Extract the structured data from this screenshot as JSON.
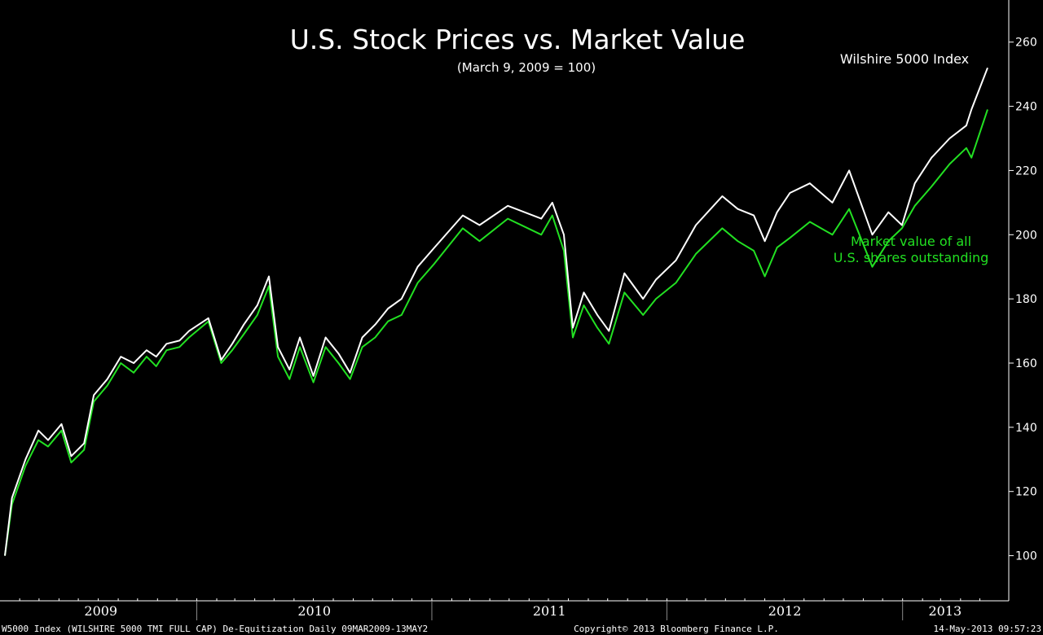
{
  "chart_data": {
    "type": "line",
    "title": "U.S. Stock Prices vs. Market Value",
    "subtitle": "(March 9, 2009 = 100)",
    "ylim": [
      90,
      265
    ],
    "y_ticks": [
      100,
      120,
      140,
      160,
      180,
      200,
      220,
      240,
      260
    ],
    "x_range": [
      "2009-03-09",
      "2013-05-13"
    ],
    "x_year_labels": [
      {
        "label": "2009",
        "start": "2009-03-09",
        "end": "2010-01-01"
      },
      {
        "label": "2010",
        "start": "2010-01-01",
        "end": "2011-01-01"
      },
      {
        "label": "2011",
        "start": "2011-01-01",
        "end": "2012-01-01"
      },
      {
        "label": "2012",
        "start": "2012-01-01",
        "end": "2013-01-01"
      },
      {
        "label": "2013",
        "start": "2013-01-01",
        "end": "2013-05-13"
      }
    ],
    "grid": false,
    "x": [
      "2009-03-09",
      "2009-03-20",
      "2009-04-10",
      "2009-04-30",
      "2009-05-15",
      "2009-06-05",
      "2009-06-20",
      "2009-07-10",
      "2009-07-25",
      "2009-08-15",
      "2009-09-05",
      "2009-09-25",
      "2009-10-15",
      "2009-10-30",
      "2009-11-15",
      "2009-12-05",
      "2009-12-20",
      "2010-01-19",
      "2010-02-08",
      "2010-02-25",
      "2010-03-15",
      "2010-04-05",
      "2010-04-23",
      "2010-05-07",
      "2010-05-25",
      "2010-06-10",
      "2010-07-01",
      "2010-07-20",
      "2010-08-09",
      "2010-08-27",
      "2010-09-15",
      "2010-10-05",
      "2010-10-25",
      "2010-11-15",
      "2010-12-10",
      "2011-01-05",
      "2011-02-18",
      "2011-03-16",
      "2011-04-29",
      "2011-06-20",
      "2011-07-07",
      "2011-07-25",
      "2011-08-08",
      "2011-08-25",
      "2011-09-15",
      "2011-10-03",
      "2011-10-27",
      "2011-11-25",
      "2011-12-15",
      "2012-01-15",
      "2012-02-15",
      "2012-03-27",
      "2012-04-20",
      "2012-05-15",
      "2012-06-01",
      "2012-06-20",
      "2012-07-10",
      "2012-08-10",
      "2012-09-14",
      "2012-10-10",
      "2012-11-15",
      "2012-12-10",
      "2012-12-31",
      "2013-01-20",
      "2013-02-15",
      "2013-03-15",
      "2013-04-10",
      "2013-04-18",
      "2013-05-13"
    ],
    "series": [
      {
        "name": "Wilshire 5000 Index",
        "color": "#ffffff",
        "values": [
          100,
          118,
          130,
          139,
          136,
          141,
          131,
          135,
          150,
          155,
          162,
          160,
          164,
          162,
          166,
          167,
          170,
          174,
          161,
          166,
          172,
          178,
          187,
          165,
          158,
          168,
          156,
          168,
          163,
          157,
          168,
          172,
          177,
          180,
          190,
          196,
          206,
          203,
          209,
          205,
          210,
          200,
          171,
          182,
          175,
          170,
          188,
          180,
          186,
          192,
          203,
          212,
          208,
          206,
          198,
          207,
          213,
          216,
          210,
          220,
          200,
          207,
          203,
          216,
          224,
          230,
          234,
          239,
          252
        ]
      },
      {
        "name": "Market value of all U.S. shares outstanding",
        "color": "#22e022",
        "values": [
          100,
          116,
          128,
          136,
          134,
          139,
          129,
          133,
          148,
          153,
          160,
          157,
          162,
          159,
          164,
          165,
          168,
          173,
          160,
          164,
          169,
          175,
          184,
          162,
          155,
          165,
          154,
          165,
          160,
          155,
          165,
          168,
          173,
          175,
          185,
          191,
          202,
          198,
          205,
          200,
          206,
          195,
          168,
          178,
          171,
          166,
          182,
          175,
          180,
          185,
          194,
          202,
          198,
          195,
          187,
          196,
          199,
          204,
          200,
          208,
          190,
          198,
          202,
          209,
          215,
          222,
          227,
          224,
          239
        ]
      }
    ],
    "annotations": {
      "wilshire": "Wilshire 5000 Index",
      "market_value_line1": "Market value of all",
      "market_value_line2": "U.S. shares outstanding"
    }
  },
  "footer": {
    "left": "W5000 Index (WILSHIRE 5000 TMI FULL CAP) De-Equitization  Daily 09MAR2009-13MAY2",
    "center": "Copyright© 2013 Bloomberg Finance L.P.",
    "right": "14-May-2013 09:57:23"
  }
}
